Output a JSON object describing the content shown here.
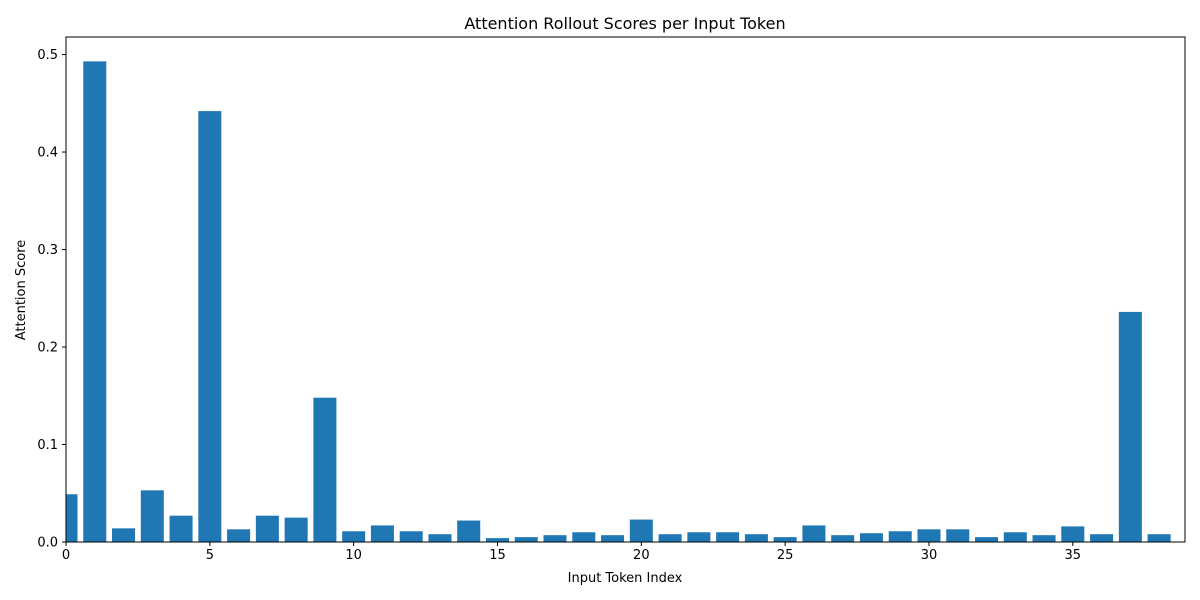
{
  "chart_data": {
    "type": "bar",
    "title": "Attention Rollout Scores per Input Token",
    "xlabel": "Input Token Index",
    "ylabel": "Attention Score",
    "x": [
      0,
      1,
      2,
      3,
      4,
      5,
      6,
      7,
      8,
      9,
      10,
      11,
      12,
      13,
      14,
      15,
      16,
      17,
      18,
      19,
      20,
      21,
      22,
      23,
      24,
      25,
      26,
      27,
      28,
      29,
      30,
      31,
      32,
      33,
      34,
      35,
      36,
      37,
      38
    ],
    "values": [
      0.049,
      0.493,
      0.014,
      0.053,
      0.027,
      0.442,
      0.013,
      0.027,
      0.025,
      0.148,
      0.011,
      0.017,
      0.011,
      0.008,
      0.022,
      0.004,
      0.005,
      0.007,
      0.01,
      0.007,
      0.023,
      0.008,
      0.01,
      0.01,
      0.008,
      0.005,
      0.017,
      0.007,
      0.009,
      0.011,
      0.013,
      0.013,
      0.005,
      0.01,
      0.007,
      0.016,
      0.008,
      0.236,
      0.008
    ],
    "xlim": [
      0,
      38.9
    ],
    "ylim": [
      0,
      0.518
    ],
    "xticks": [
      0,
      5,
      10,
      15,
      20,
      25,
      30,
      35
    ],
    "xtick_labels": [
      "0",
      "5",
      "10",
      "15",
      "20",
      "25",
      "30",
      "35"
    ],
    "yticks": [
      0,
      0.1,
      0.2,
      0.3,
      0.4,
      0.5
    ],
    "ytick_labels": [
      "0.0",
      "0.1",
      "0.2",
      "0.3",
      "0.4",
      "0.5"
    ],
    "grid": false,
    "bar_color": "#1f77b4"
  }
}
